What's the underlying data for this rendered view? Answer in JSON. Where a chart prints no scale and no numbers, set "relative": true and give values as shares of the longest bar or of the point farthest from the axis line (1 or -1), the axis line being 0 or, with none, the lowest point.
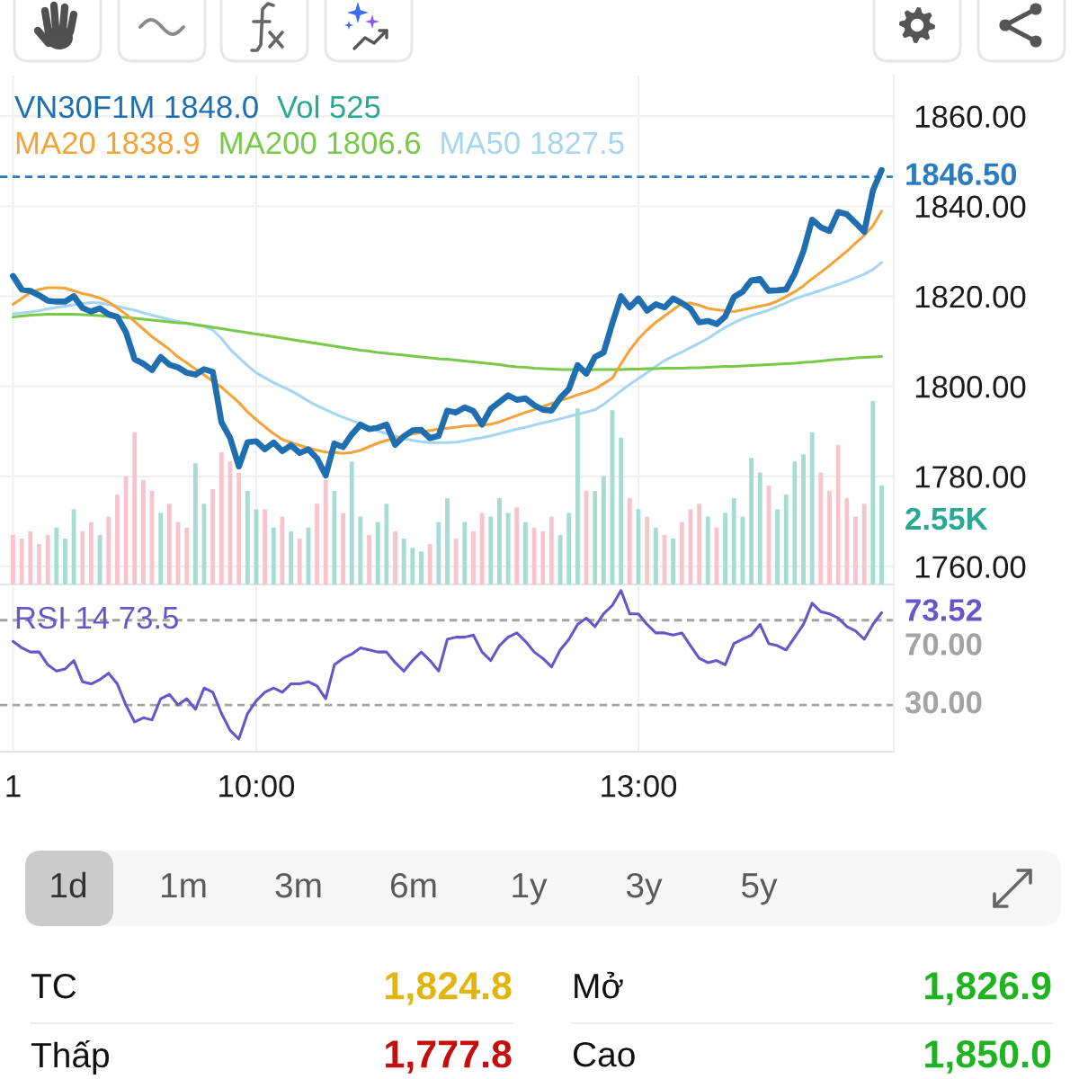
{
  "chart_data": [
    {
      "type": "line",
      "categories": [
        null,
        null,
        null,
        null,
        null,
        null,
        null,
        null,
        null,
        null,
        null,
        null,
        null,
        null,
        null,
        null,
        null,
        null,
        null,
        null,
        null,
        null,
        null,
        null,
        null,
        null,
        null,
        null,
        null,
        null,
        null,
        null,
        null,
        null,
        null,
        null,
        null,
        null,
        null,
        null,
        null,
        null,
        null,
        null,
        null,
        null,
        null,
        null,
        null,
        null,
        null,
        null,
        null,
        null,
        null,
        null,
        null,
        null,
        null,
        null,
        null,
        null,
        null,
        null,
        null,
        null,
        null,
        null,
        null,
        null,
        null,
        null,
        null,
        null,
        null,
        null,
        null,
        null,
        null,
        null,
        null,
        null,
        null,
        null,
        null,
        null,
        null,
        null,
        null,
        null,
        null,
        null,
        null,
        null,
        null,
        null,
        null,
        null,
        null,
        null,
        null
      ],
      "series": [
        {
          "name": "VN30F1M",
          "color": "#1f6eaf",
          "values": [
            1824.5,
            1821.5,
            1821.2,
            1820.2,
            1819.0,
            1818.8,
            1818.8,
            1820.0,
            1817.4,
            1816.6,
            1817.3,
            1816.0,
            1815.4,
            1812.0,
            1806.0,
            1805.0,
            1803.6,
            1806.5,
            1804.8,
            1804.2,
            1803.0,
            1802.6,
            1803.8,
            1803.2,
            1792.0,
            1788.5,
            1782.2,
            1787.6,
            1787.8,
            1786.0,
            1787.5,
            1785.6,
            1786.9,
            1785.2,
            1786.0,
            1784.0,
            1780.2,
            1787.3,
            1786.5,
            1789.3,
            1791.5,
            1790.5,
            1790.8,
            1791.5,
            1787.0,
            1788.9,
            1790.2,
            1790.3,
            1788.5,
            1789.0,
            1794.6,
            1794.2,
            1795.3,
            1794.5,
            1791.5,
            1795.0,
            1796.5,
            1798.0,
            1797.0,
            1797.3,
            1795.8,
            1794.8,
            1794.6,
            1797.4,
            1799.4,
            1804.7,
            1802.8,
            1806.5,
            1807.5,
            1814.0,
            1820.0,
            1817.5,
            1819.5,
            1816.8,
            1818.2,
            1817.5,
            1819.5,
            1818.5,
            1817.2,
            1814.2,
            1814.5,
            1813.8,
            1815.5,
            1819.8,
            1821.0,
            1823.5,
            1823.8,
            1821.2,
            1821.3,
            1821.5,
            1825.0,
            1830.0,
            1837.0,
            1835.3,
            1834.5,
            1838.7,
            1838.2,
            1836.3,
            1834.3,
            1843.5,
            1848.0
          ]
        },
        {
          "name": "MA20",
          "color": "#f2a33a",
          "values": [
            1818.2,
            1819.5,
            1820.8,
            1821.5,
            1821.9,
            1821.9,
            1821.8,
            1821.2,
            1820.6,
            1820.2,
            1819.6,
            1818.7,
            1817.4,
            1816.0,
            1814.4,
            1812.7,
            1811.0,
            1809.6,
            1808.2,
            1806.5,
            1805.2,
            1803.8,
            1802.5,
            1801.1,
            1799.8,
            1798.1,
            1796.4,
            1794.3,
            1792.6,
            1791.0,
            1789.5,
            1788.2,
            1787.5,
            1786.9,
            1786.3,
            1785.8,
            1785.4,
            1785.3,
            1785.1,
            1785.3,
            1785.8,
            1786.6,
            1787.4,
            1788.0,
            1788.5,
            1788.9,
            1789.4,
            1789.8,
            1790.2,
            1790.5,
            1790.7,
            1790.9,
            1791.2,
            1791.3,
            1791.4,
            1791.6,
            1792.1,
            1792.8,
            1793.5,
            1794.2,
            1794.8,
            1795.5,
            1796.2,
            1796.8,
            1797.4,
            1798.1,
            1798.7,
            1799.4,
            1800.6,
            1801.8,
            1805.0,
            1808.0,
            1810.5,
            1812.5,
            1814.2,
            1815.6,
            1817.0,
            1818.4,
            1818.5,
            1818.0,
            1817.3,
            1817.0,
            1816.8,
            1816.6,
            1817.0,
            1817.4,
            1817.8,
            1818.2,
            1818.9,
            1819.9,
            1821.0,
            1822.3,
            1823.9,
            1825.3,
            1826.8,
            1828.4,
            1830.0,
            1831.8,
            1833.5,
            1835.6,
            1838.9
          ]
        },
        {
          "name": "MA200",
          "color": "#78c94a",
          "values": [
            1815.4,
            1815.6,
            1815.8,
            1815.9,
            1816.0,
            1816.0,
            1816.0,
            1816.0,
            1815.9,
            1815.8,
            1815.7,
            1815.5,
            1815.4,
            1815.3,
            1815.1,
            1814.9,
            1814.7,
            1814.5,
            1814.3,
            1814.1,
            1814.0,
            1813.7,
            1813.4,
            1813.1,
            1812.8,
            1812.5,
            1812.2,
            1811.9,
            1811.6,
            1811.3,
            1811.0,
            1810.7,
            1810.4,
            1810.1,
            1809.8,
            1809.5,
            1809.2,
            1808.9,
            1808.6,
            1808.3,
            1808.0,
            1807.8,
            1807.5,
            1807.3,
            1807.1,
            1806.9,
            1806.7,
            1806.5,
            1806.3,
            1806.1,
            1806.0,
            1805.8,
            1805.6,
            1805.4,
            1805.2,
            1805.0,
            1804.8,
            1804.5,
            1804.3,
            1804.2,
            1804.0,
            1803.9,
            1803.8,
            1803.7,
            1803.7,
            1803.7,
            1803.7,
            1803.7,
            1803.7,
            1803.7,
            1803.7,
            1803.8,
            1803.8,
            1803.9,
            1803.9,
            1804.0,
            1804.0,
            1804.0,
            1804.1,
            1804.1,
            1804.2,
            1804.3,
            1804.4,
            1804.4,
            1804.5,
            1804.6,
            1804.7,
            1804.8,
            1804.9,
            1805.0,
            1805.1,
            1805.3,
            1805.4,
            1805.6,
            1805.8,
            1806.0,
            1806.1,
            1806.3,
            1806.4,
            1806.5,
            1806.6
          ]
        },
        {
          "name": "MA50",
          "color": "#a5d5f0",
          "values": [
            1816.1,
            1816.3,
            1816.5,
            1816.8,
            1817.2,
            1817.5,
            1817.8,
            1818.1,
            1818.4,
            1818.6,
            1818.5,
            1818.2,
            1817.8,
            1817.3,
            1816.9,
            1816.3,
            1815.8,
            1815.3,
            1814.8,
            1814.4,
            1814.0,
            1813.6,
            1813.3,
            1812.5,
            1810.6,
            1808.2,
            1806.4,
            1804.6,
            1803.0,
            1801.9,
            1800.8,
            1799.9,
            1799.0,
            1797.9,
            1796.7,
            1795.7,
            1794.8,
            1793.9,
            1793.1,
            1792.4,
            1791.6,
            1790.9,
            1790.1,
            1789.5,
            1789.0,
            1788.4,
            1788.0,
            1787.7,
            1787.5,
            1787.5,
            1787.5,
            1787.6,
            1787.9,
            1788.3,
            1788.6,
            1789.0,
            1789.5,
            1790.0,
            1790.5,
            1790.9,
            1791.4,
            1791.9,
            1792.3,
            1792.8,
            1793.3,
            1793.8,
            1794.3,
            1794.8,
            1796.0,
            1797.5,
            1799.0,
            1800.4,
            1801.7,
            1803.0,
            1804.4,
            1805.7,
            1806.7,
            1807.6,
            1808.6,
            1809.6,
            1810.6,
            1811.9,
            1813.1,
            1814.1,
            1815.0,
            1815.7,
            1816.3,
            1816.9,
            1817.7,
            1818.5,
            1819.4,
            1820.1,
            1820.7,
            1821.3,
            1822.0,
            1822.6,
            1823.3,
            1824.1,
            1824.9,
            1825.9,
            1827.5
          ]
        }
      ],
      "ylim": [
        1756,
        1869
      ],
      "yticks": [
        {
          "value": 1760,
          "label": "1760.00"
        },
        {
          "value": 1780,
          "label": "1780.00"
        },
        {
          "value": 1800,
          "label": "1800.00"
        },
        {
          "value": 1820,
          "label": "1820.00"
        },
        {
          "value": 1840,
          "label": "1840.00"
        },
        {
          "value": 1860,
          "label": "1860.00"
        }
      ],
      "ref_lines": [
        {
          "axis": "y",
          "value": 1846.5,
          "label": "1846.50",
          "color": "#2b7bbd",
          "line_style": "dashed"
        }
      ],
      "annotations": [
        "1848.0",
        "1838.9",
        "1806.6",
        "1827.5"
      ],
      "grid": true,
      "tick_labels": "y"
    },
    {
      "type": "bar",
      "relative": true,
      "categories": [
        null,
        null,
        null,
        null,
        null,
        null,
        null,
        null,
        null,
        null,
        null,
        null,
        null,
        null,
        null,
        null,
        null,
        null,
        null,
        null,
        null,
        null,
        null,
        null,
        null,
        null,
        null,
        null,
        null,
        null,
        null,
        null,
        null,
        null,
        null,
        null,
        null,
        null,
        null,
        null,
        null,
        null,
        null,
        null,
        null,
        null,
        null,
        null,
        null,
        null,
        null,
        null,
        null,
        null,
        null,
        null,
        null,
        null,
        null,
        null,
        null,
        null,
        null,
        null,
        null,
        null,
        null,
        null,
        null,
        null,
        null,
        null,
        null,
        null,
        null,
        null,
        null,
        null,
        null,
        null,
        null,
        null,
        null,
        null,
        null,
        null,
        null,
        null,
        null,
        null,
        null,
        null,
        null,
        null,
        null,
        null,
        null,
        null,
        null,
        null,
        null
      ],
      "series": [
        {
          "name": "Vol",
          "color": "#2aa893",
          "colors": [
            "#f7c4cb",
            "#f7c4cb",
            "#f7c4cb",
            "#f7c4cb",
            "#f7c4cb",
            "#a6dcd2",
            "#a6dcd2",
            "#a6dcd2",
            "#f7c4cb",
            "#f7c4cb",
            "#a6dcd2",
            "#f7c4cb",
            "#f7c4cb",
            "#f7c4cb",
            "#f7c4cb",
            "#f7c4cb",
            "#f7c4cb",
            "#a6dcd2",
            "#f7c4cb",
            "#f7c4cb",
            "#f7c4cb",
            "#a6dcd2",
            "#a6dcd2",
            "#f7c4cb",
            "#f7c4cb",
            "#f7c4cb",
            "#f7c4cb",
            "#a6dcd2",
            "#a6dcd2",
            "#f7c4cb",
            "#a6dcd2",
            "#f7c4cb",
            "#a6dcd2",
            "#f7c4cb",
            "#a6dcd2",
            "#f7c4cb",
            "#f7c4cb",
            "#a6dcd2",
            "#f7c4cb",
            "#a6dcd2",
            "#a6dcd2",
            "#f7c4cb",
            "#a6dcd2",
            "#a6dcd2",
            "#f7c4cb",
            "#a6dcd2",
            "#a6dcd2",
            "#a6dcd2",
            "#f7c4cb",
            "#a6dcd2",
            "#a6dcd2",
            "#f7c4cb",
            "#a6dcd2",
            "#f7c4cb",
            "#f7c4cb",
            "#a6dcd2",
            "#a6dcd2",
            "#a6dcd2",
            "#f7c4cb",
            "#a6dcd2",
            "#f7c4cb",
            "#f7c4cb",
            "#f7c4cb",
            "#a6dcd2",
            "#a6dcd2",
            "#a6dcd2",
            "#f7c4cb",
            "#a6dcd2",
            "#a6dcd2",
            "#a6dcd2",
            "#a6dcd2",
            "#f7c4cb",
            "#a6dcd2",
            "#f7c4cb",
            "#a6dcd2",
            "#f7c4cb",
            "#a6dcd2",
            "#f7c4cb",
            "#f7c4cb",
            "#f7c4cb",
            "#a6dcd2",
            "#f7c4cb",
            "#a6dcd2",
            "#a6dcd2",
            "#a6dcd2",
            "#a6dcd2",
            "#a6dcd2",
            "#f7c4cb",
            "#a6dcd2",
            "#a6dcd2",
            "#a6dcd2",
            "#a6dcd2",
            "#a6dcd2",
            "#f7c4cb",
            "#f7c4cb",
            "#f7c4cb",
            "#f7c4cb",
            "#f7c4cb",
            "#f7c4cb",
            "#a6dcd2",
            "#a6dcd2"
          ],
          "values": [
            0.27,
            0.25,
            0.29,
            0.22,
            0.27,
            0.31,
            0.25,
            0.41,
            0.29,
            0.34,
            0.27,
            0.37,
            0.49,
            0.59,
            0.83,
            0.57,
            0.51,
            0.39,
            0.44,
            0.34,
            0.31,
            0.66,
            0.44,
            0.52,
            0.72,
            0.67,
            0.61,
            0.51,
            0.41,
            0.41,
            0.31,
            0.37,
            0.29,
            0.25,
            0.31,
            0.44,
            0.57,
            0.51,
            0.39,
            0.67,
            0.37,
            0.27,
            0.34,
            0.44,
            0.29,
            0.25,
            0.2,
            0.18,
            0.22,
            0.34,
            0.47,
            0.25,
            0.34,
            0.29,
            0.39,
            0.37,
            0.47,
            0.39,
            0.42,
            0.34,
            0.31,
            0.29,
            0.37,
            0.27,
            0.39,
            0.96,
            0.51,
            0.51,
            0.59,
            0.95,
            0.8,
            0.47,
            0.41,
            0.37,
            0.31,
            0.27,
            0.25,
            0.34,
            0.41,
            0.44,
            0.37,
            0.31,
            0.39,
            0.47,
            0.37,
            0.69,
            0.61,
            0.54,
            0.41,
            0.49,
            0.67,
            0.71,
            0.83,
            0.61,
            0.51,
            0.76,
            0.47,
            0.37,
            0.44,
            1,
            0.54
          ]
        }
      ],
      "annotations": [
        "525",
        "2.55K"
      ],
      "tick_labels": false
    },
    {
      "type": "line",
      "categories": [
        "1",
        null,
        null,
        null,
        null,
        null,
        null,
        null,
        null,
        null,
        null,
        null,
        null,
        null,
        null,
        null,
        null,
        null,
        null,
        null,
        null,
        null,
        null,
        null,
        null,
        null,
        null,
        null,
        "10:00",
        null,
        null,
        null,
        null,
        null,
        null,
        null,
        null,
        null,
        null,
        null,
        null,
        null,
        null,
        null,
        null,
        null,
        null,
        null,
        null,
        null,
        null,
        null,
        null,
        null,
        null,
        null,
        null,
        null,
        null,
        null,
        null,
        null,
        null,
        null,
        null,
        null,
        null,
        null,
        null,
        null,
        null,
        null,
        "13:00",
        null,
        null,
        null,
        null,
        null,
        null,
        null,
        null,
        null,
        null,
        null,
        null,
        null,
        null,
        null,
        null,
        null,
        null,
        null,
        null,
        null,
        null,
        null,
        null,
        null,
        null,
        null,
        null
      ],
      "series": [
        {
          "name": "RSI 14",
          "color": "#6a55c8",
          "values": [
            60,
            57,
            55,
            55,
            49,
            46,
            47,
            51,
            41,
            40,
            42,
            45,
            40,
            30,
            22,
            24,
            23,
            33,
            35,
            30,
            33,
            28,
            38,
            36,
            26,
            18,
            14,
            26,
            32,
            36,
            38,
            36,
            40,
            40,
            41,
            39,
            33,
            49,
            52,
            54,
            57,
            56,
            55,
            55,
            50,
            46,
            51,
            55,
            51,
            46,
            61,
            62,
            62,
            63,
            55,
            51,
            58,
            62,
            64,
            60,
            55,
            52,
            48,
            56,
            61,
            68,
            71,
            67,
            73,
            77,
            84,
            73,
            73,
            68,
            64,
            64,
            63,
            64,
            58,
            52,
            50,
            51,
            49,
            59,
            61,
            63,
            68,
            59,
            58,
            56,
            62,
            68,
            78,
            74,
            73,
            71,
            67,
            65,
            61,
            68,
            73.5
          ]
        }
      ],
      "ylim": [
        8,
        86
      ],
      "ref_lines": [
        {
          "axis": "y",
          "value": 70,
          "label": "70.00",
          "color": "#a3a3a3",
          "line_style": "dashed"
        },
        {
          "axis": "y",
          "value": 30,
          "label": "30.00",
          "color": "#a3a3a3",
          "line_style": "dashed"
        }
      ],
      "annotations": [
        "73.5",
        "73.52"
      ],
      "grid": "x",
      "tick_labels": "x"
    },
    {
      "type": "other",
      "categories": [
        "1d",
        "1m",
        "3m",
        "6m",
        "1y",
        "3y",
        "5y"
      ],
      "annotations": [
        "TC",
        "1,824.8",
        "Mở",
        "1,826.9",
        "Thấp",
        "1,777.8",
        "Cao",
        "1,850.0"
      ],
      "colors": [
        null,
        "#e2b50e",
        null,
        "#1fb31f",
        null,
        "#c40d0d",
        null,
        "#1fb31f"
      ]
    }
  ]
}
